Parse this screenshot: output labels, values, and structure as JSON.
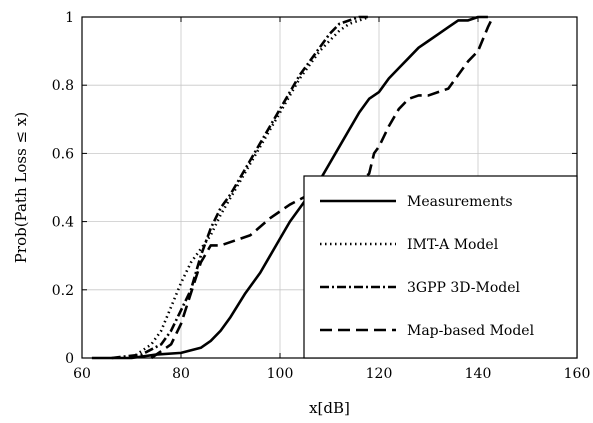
{
  "chart_data": {
    "type": "line",
    "title": "",
    "xlabel": "x[dB]",
    "ylabel": "Prob(Path Loss ≤ x)",
    "xlim": [
      60,
      160
    ],
    "ylim": [
      0,
      1
    ],
    "xticks": [
      60,
      80,
      100,
      120,
      140,
      160
    ],
    "yticks": [
      0,
      0.2,
      0.4,
      0.6,
      0.8,
      1
    ],
    "grid": true,
    "legend_position": "lower-right",
    "series": [
      {
        "name": "Measurements",
        "style": "solid",
        "x": [
          62,
          70,
          75,
          80,
          84,
          86,
          88,
          90,
          93,
          96,
          98,
          100,
          102,
          104,
          106,
          108,
          110,
          112,
          114,
          116,
          118,
          120,
          122,
          124,
          126,
          128,
          130,
          132,
          134,
          136,
          138,
          140,
          142
        ],
        "y": [
          0,
          0,
          0.01,
          0.015,
          0.03,
          0.05,
          0.08,
          0.12,
          0.19,
          0.25,
          0.3,
          0.35,
          0.4,
          0.44,
          0.48,
          0.52,
          0.57,
          0.62,
          0.67,
          0.72,
          0.76,
          0.78,
          0.82,
          0.85,
          0.88,
          0.91,
          0.93,
          0.95,
          0.97,
          0.99,
          0.99,
          1,
          1
        ]
      },
      {
        "name": "IMT-A Model",
        "style": "dotted",
        "x": [
          70,
          74,
          76,
          78,
          80,
          82,
          84,
          86,
          88,
          90,
          92,
          94,
          96,
          98,
          100,
          102,
          104,
          106,
          108,
          110,
          112,
          114,
          116,
          118
        ],
        "y": [
          0,
          0.04,
          0.08,
          0.15,
          0.22,
          0.28,
          0.32,
          0.36,
          0.42,
          0.47,
          0.52,
          0.57,
          0.62,
          0.67,
          0.72,
          0.77,
          0.82,
          0.86,
          0.9,
          0.93,
          0.96,
          0.98,
          0.99,
          1
        ]
      },
      {
        "name": "3GPP 3D-Model",
        "style": "dashdot",
        "x": [
          66,
          72,
          76,
          78,
          80,
          82,
          84,
          86,
          88,
          90,
          92,
          94,
          96,
          98,
          100,
          102,
          104,
          106,
          108,
          110,
          112,
          114,
          116,
          118
        ],
        "y": [
          0,
          0.01,
          0.04,
          0.08,
          0.14,
          0.2,
          0.3,
          0.38,
          0.44,
          0.48,
          0.53,
          0.58,
          0.63,
          0.68,
          0.73,
          0.78,
          0.83,
          0.87,
          0.91,
          0.95,
          0.98,
          0.99,
          1,
          1
        ]
      },
      {
        "name": "Map-based Model",
        "style": "dashed",
        "x": [
          74,
          78,
          80,
          82,
          84,
          86,
          88,
          90,
          94,
          98,
          102,
          106,
          110,
          114,
          116,
          118,
          119,
          120,
          122,
          124,
          126,
          128,
          130,
          132,
          134,
          136,
          138,
          140,
          142,
          143
        ],
        "y": [
          0,
          0.04,
          0.1,
          0.19,
          0.28,
          0.33,
          0.33,
          0.34,
          0.36,
          0.41,
          0.45,
          0.48,
          0.49,
          0.51,
          0.52,
          0.54,
          0.6,
          0.62,
          0.68,
          0.73,
          0.76,
          0.77,
          0.77,
          0.78,
          0.79,
          0.83,
          0.87,
          0.9,
          0.97,
          1
        ]
      }
    ]
  }
}
